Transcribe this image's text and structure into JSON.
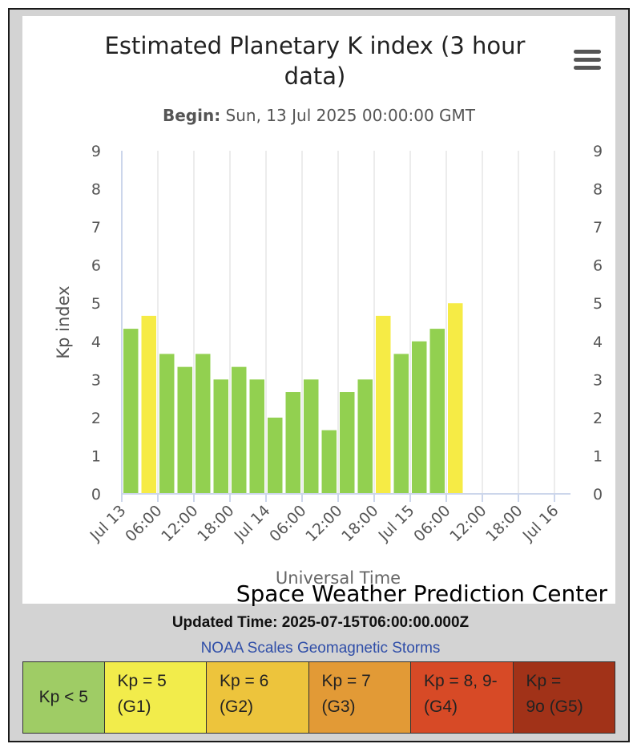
{
  "chart_data": {
    "type": "bar",
    "title": "Estimated Planetary K index (3 hour data)",
    "subtitle_label": "Begin:",
    "subtitle_value": "Sun, 13 Jul 2025 00:00:00 GMT",
    "ylabel": "Kp index",
    "xlabel": "Universal Time",
    "ylim": [
      0,
      9
    ],
    "yticks": [
      "0",
      "1",
      "2",
      "3",
      "4",
      "5",
      "6",
      "7",
      "8",
      "9"
    ],
    "xlim_hours": [
      0,
      72
    ],
    "xticks": [
      "Jul 13",
      "06:00",
      "12:00",
      "18:00",
      "Jul 14",
      "06:00",
      "12:00",
      "18:00",
      "Jul 15",
      "06:00",
      "12:00",
      "18:00",
      "Jul 16"
    ],
    "x_start_hours": [
      0,
      3,
      6,
      9,
      12,
      15,
      18,
      21,
      24,
      27,
      30,
      33,
      36,
      39,
      42,
      45,
      48,
      51,
      54
    ],
    "values": [
      4.33,
      4.67,
      3.67,
      3.33,
      3.67,
      3.0,
      3.33,
      3.0,
      2.0,
      2.67,
      3.0,
      1.67,
      2.67,
      3.0,
      4.67,
      3.67,
      4.0,
      4.33,
      5.0
    ],
    "grid": true,
    "colors": {
      "below5": "#92d050",
      "g1": "#f6eb45",
      "axis_line": "#ccd6eb"
    },
    "credit": "Space Weather Prediction Center"
  },
  "updated": "Updated Time: 2025-07-15T06:00:00.000Z",
  "scale_link": "NOAA Scales Geomagnetic Storms",
  "legend": [
    {
      "label": "Kp < 5",
      "color": "#9fcc65"
    },
    {
      "label": "Kp = 5\n(G1)",
      "color": "#f2ec4b"
    },
    {
      "label": "Kp = 6\n(G2)",
      "color": "#edc43c"
    },
    {
      "label": "Kp = 7\n(G3)",
      "color": "#e29a36"
    },
    {
      "label": "Kp = 8, 9-\n(G4)",
      "color": "#d74a26"
    },
    {
      "label": "Kp =\n9o (G5)",
      "color": "#a13218"
    }
  ]
}
